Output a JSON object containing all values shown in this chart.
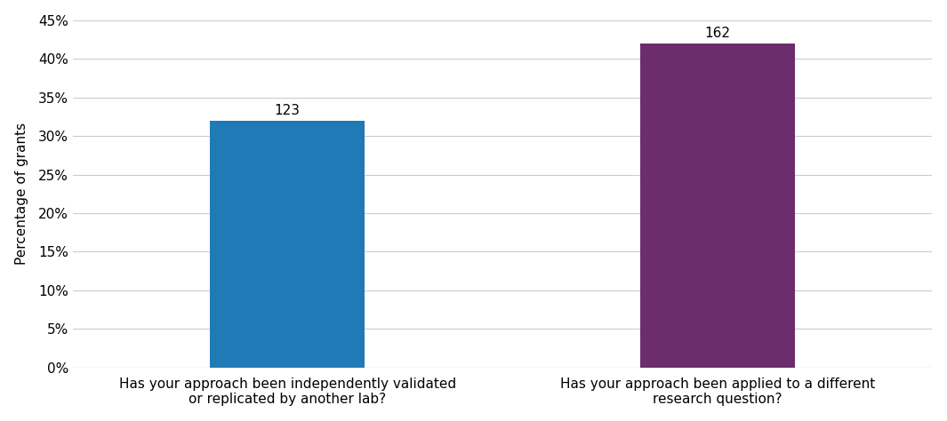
{
  "categories": [
    "Has your approach been independently validated\nor replicated by another lab?",
    "Has your approach been applied to a different\nresearch question?"
  ],
  "values": [
    32,
    42
  ],
  "labels": [
    123,
    162
  ],
  "bar_colors": [
    "#1f7ab5",
    "#6b2d6b"
  ],
  "ylabel": "Percentage of grants",
  "ylim": [
    0,
    45
  ],
  "yticks": [
    0,
    5,
    10,
    15,
    20,
    25,
    30,
    35,
    40,
    45
  ],
  "background_color": "#ffffff",
  "grid_color": "#cccccc",
  "label_fontsize": 11,
  "tick_fontsize": 11,
  "ylabel_fontsize": 11,
  "annotation_fontsize": 11,
  "bar_width": 0.18,
  "x_positions": [
    0.25,
    0.75
  ],
  "xlim": [
    0,
    1
  ]
}
